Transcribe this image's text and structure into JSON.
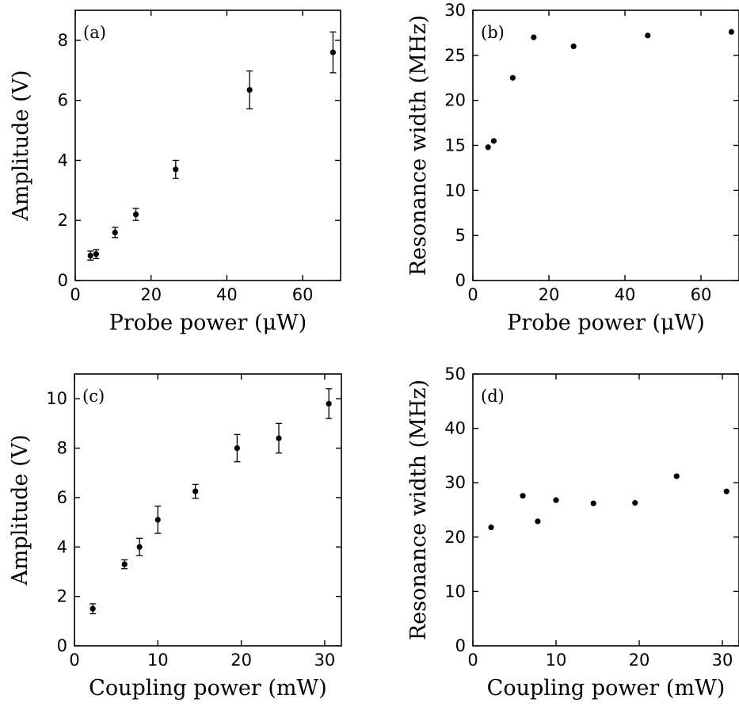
{
  "chart_data": [
    {
      "type": "scatter",
      "panel_label": "(a)",
      "xlabel": "Probe power (μW)",
      "ylabel": "Amplitude (V)",
      "xlim": [
        0,
        70
      ],
      "ylim": [
        0,
        9
      ],
      "xticks": [
        0,
        20,
        40,
        60
      ],
      "yticks": [
        0,
        2,
        4,
        6,
        8
      ],
      "error_bars": true,
      "series": [
        {
          "x": [
            4,
            5.5,
            10.5,
            16,
            26.5,
            46,
            68
          ],
          "y": [
            0.83,
            0.88,
            1.6,
            2.2,
            3.7,
            6.35,
            7.6
          ],
          "error": [
            0.15,
            0.15,
            0.17,
            0.2,
            0.3,
            0.63,
            0.68
          ]
        }
      ]
    },
    {
      "type": "scatter",
      "panel_label": "(b)",
      "xlabel": "Probe power (μW)",
      "ylabel": "Resonance width (MHz)",
      "xlim": [
        0,
        70
      ],
      "ylim": [
        0,
        30
      ],
      "xticks": [
        0,
        20,
        40,
        60
      ],
      "yticks": [
        0,
        5,
        10,
        15,
        20,
        25,
        30
      ],
      "error_bars": false,
      "series": [
        {
          "x": [
            4,
            5.5,
            10.5,
            16,
            26.5,
            46,
            68
          ],
          "y": [
            14.8,
            15.5,
            22.5,
            27,
            26,
            27.2,
            27.6
          ]
        }
      ]
    },
    {
      "type": "scatter",
      "panel_label": "(c)",
      "xlabel": "Coupling power (mW)",
      "ylabel": "Amplitude (V)",
      "xlim": [
        0,
        32
      ],
      "ylim": [
        0,
        11
      ],
      "xticks": [
        0,
        10,
        20,
        30
      ],
      "yticks": [
        0,
        2,
        4,
        6,
        8,
        10
      ],
      "error_bars": true,
      "series": [
        {
          "x": [
            2.2,
            6,
            7.8,
            10,
            14.5,
            19.5,
            24.5,
            30.5
          ],
          "y": [
            1.5,
            3.3,
            4,
            5.1,
            6.25,
            8,
            8.4,
            9.8
          ],
          "error": [
            0.2,
            0.18,
            0.35,
            0.55,
            0.28,
            0.55,
            0.6,
            0.6
          ]
        }
      ]
    },
    {
      "type": "scatter",
      "panel_label": "(d)",
      "xlabel": "Coupling power (mW)",
      "ylabel": "Resonance width (MHz)",
      "xlim": [
        0,
        32
      ],
      "ylim": [
        0,
        50
      ],
      "xticks": [
        0,
        10,
        20,
        30
      ],
      "yticks": [
        0,
        10,
        20,
        30,
        40,
        50
      ],
      "error_bars": false,
      "series": [
        {
          "x": [
            2.2,
            6,
            7.8,
            10,
            14.5,
            19.5,
            24.5,
            30.5
          ],
          "y": [
            21.8,
            27.6,
            22.9,
            26.8,
            26.2,
            26.3,
            31.2,
            28.4
          ]
        }
      ]
    }
  ]
}
